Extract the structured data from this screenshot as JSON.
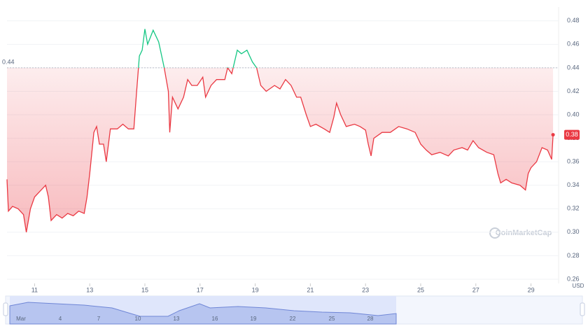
{
  "chart_data": {
    "type": "line",
    "x": [
      10.0,
      10.05,
      10.2,
      10.4,
      10.6,
      10.7,
      10.85,
      11.0,
      11.2,
      11.4,
      11.5,
      11.6,
      11.8,
      12.0,
      12.2,
      12.4,
      12.6,
      12.8,
      12.9,
      13.0,
      13.15,
      13.25,
      13.35,
      13.5,
      13.6,
      13.75,
      14.0,
      14.2,
      14.4,
      14.6,
      14.7,
      14.8,
      14.9,
      15.0,
      15.1,
      15.3,
      15.5,
      15.7,
      15.85,
      15.9,
      16.0,
      16.2,
      16.4,
      16.55,
      16.7,
      16.9,
      17.1,
      17.2,
      17.4,
      17.6,
      17.9,
      18.0,
      18.15,
      18.35,
      18.5,
      18.7,
      18.9,
      19.05,
      19.2,
      19.4,
      19.7,
      19.9,
      20.1,
      20.3,
      20.5,
      20.65,
      20.85,
      21.0,
      21.2,
      21.5,
      21.7,
      21.85,
      21.95,
      22.1,
      22.3,
      22.6,
      22.8,
      23.0,
      23.1,
      23.2,
      23.3,
      23.6,
      23.9,
      24.2,
      24.5,
      24.8,
      25.0,
      25.2,
      25.4,
      25.7,
      26.0,
      26.2,
      26.5,
      26.7,
      26.9,
      27.1,
      27.4,
      27.65,
      27.8,
      27.9,
      28.1,
      28.3,
      28.6,
      28.8,
      28.9,
      29.0,
      29.2,
      29.4,
      29.6,
      29.75,
      29.8
    ],
    "values": [
      0.345,
      0.318,
      0.322,
      0.32,
      0.315,
      0.3,
      0.32,
      0.33,
      0.335,
      0.34,
      0.33,
      0.31,
      0.315,
      0.312,
      0.316,
      0.314,
      0.318,
      0.316,
      0.33,
      0.35,
      0.385,
      0.39,
      0.375,
      0.375,
      0.36,
      0.388,
      0.388,
      0.392,
      0.388,
      0.388,
      0.42,
      0.45,
      0.455,
      0.473,
      0.46,
      0.472,
      0.462,
      0.44,
      0.42,
      0.385,
      0.415,
      0.405,
      0.415,
      0.43,
      0.425,
      0.425,
      0.432,
      0.415,
      0.425,
      0.43,
      0.43,
      0.44,
      0.435,
      0.455,
      0.452,
      0.455,
      0.445,
      0.44,
      0.425,
      0.42,
      0.425,
      0.422,
      0.43,
      0.425,
      0.415,
      0.415,
      0.4,
      0.39,
      0.392,
      0.388,
      0.385,
      0.398,
      0.41,
      0.4,
      0.39,
      0.392,
      0.39,
      0.387,
      0.375,
      0.365,
      0.38,
      0.385,
      0.385,
      0.39,
      0.388,
      0.385,
      0.375,
      0.37,
      0.366,
      0.368,
      0.365,
      0.37,
      0.372,
      0.37,
      0.378,
      0.372,
      0.368,
      0.366,
      0.35,
      0.342,
      0.345,
      0.342,
      0.34,
      0.336,
      0.35,
      0.355,
      0.36,
      0.372,
      0.37,
      0.362,
      0.383
    ],
    "last_price_label": "0.38",
    "baseline": 0.44,
    "up_color": "#16c784",
    "down_color": "#ea3943",
    "xlim": [
      10,
      29.95
    ],
    "xticks": [
      11,
      13,
      15,
      17,
      19,
      21,
      23,
      25,
      27,
      29
    ],
    "ylim": [
      0.26,
      0.49
    ],
    "yticks": [
      {
        "value": 0.26,
        "label": "0.26"
      },
      0.28,
      {
        "value": 0.3,
        "label": "0.30"
      },
      0.32,
      0.34,
      0.36,
      0.38,
      {
        "value": 0.4,
        "label": "0.40"
      },
      0.42,
      0.44,
      0.46,
      0.48
    ],
    "ylabel": "USD",
    "grid": true,
    "watermark": "CoinMarketCap",
    "navigator": {
      "labels": [
        "Mar",
        "4",
        "7",
        "10",
        "13",
        "16",
        "19",
        "22",
        "25",
        "28"
      ]
    }
  }
}
